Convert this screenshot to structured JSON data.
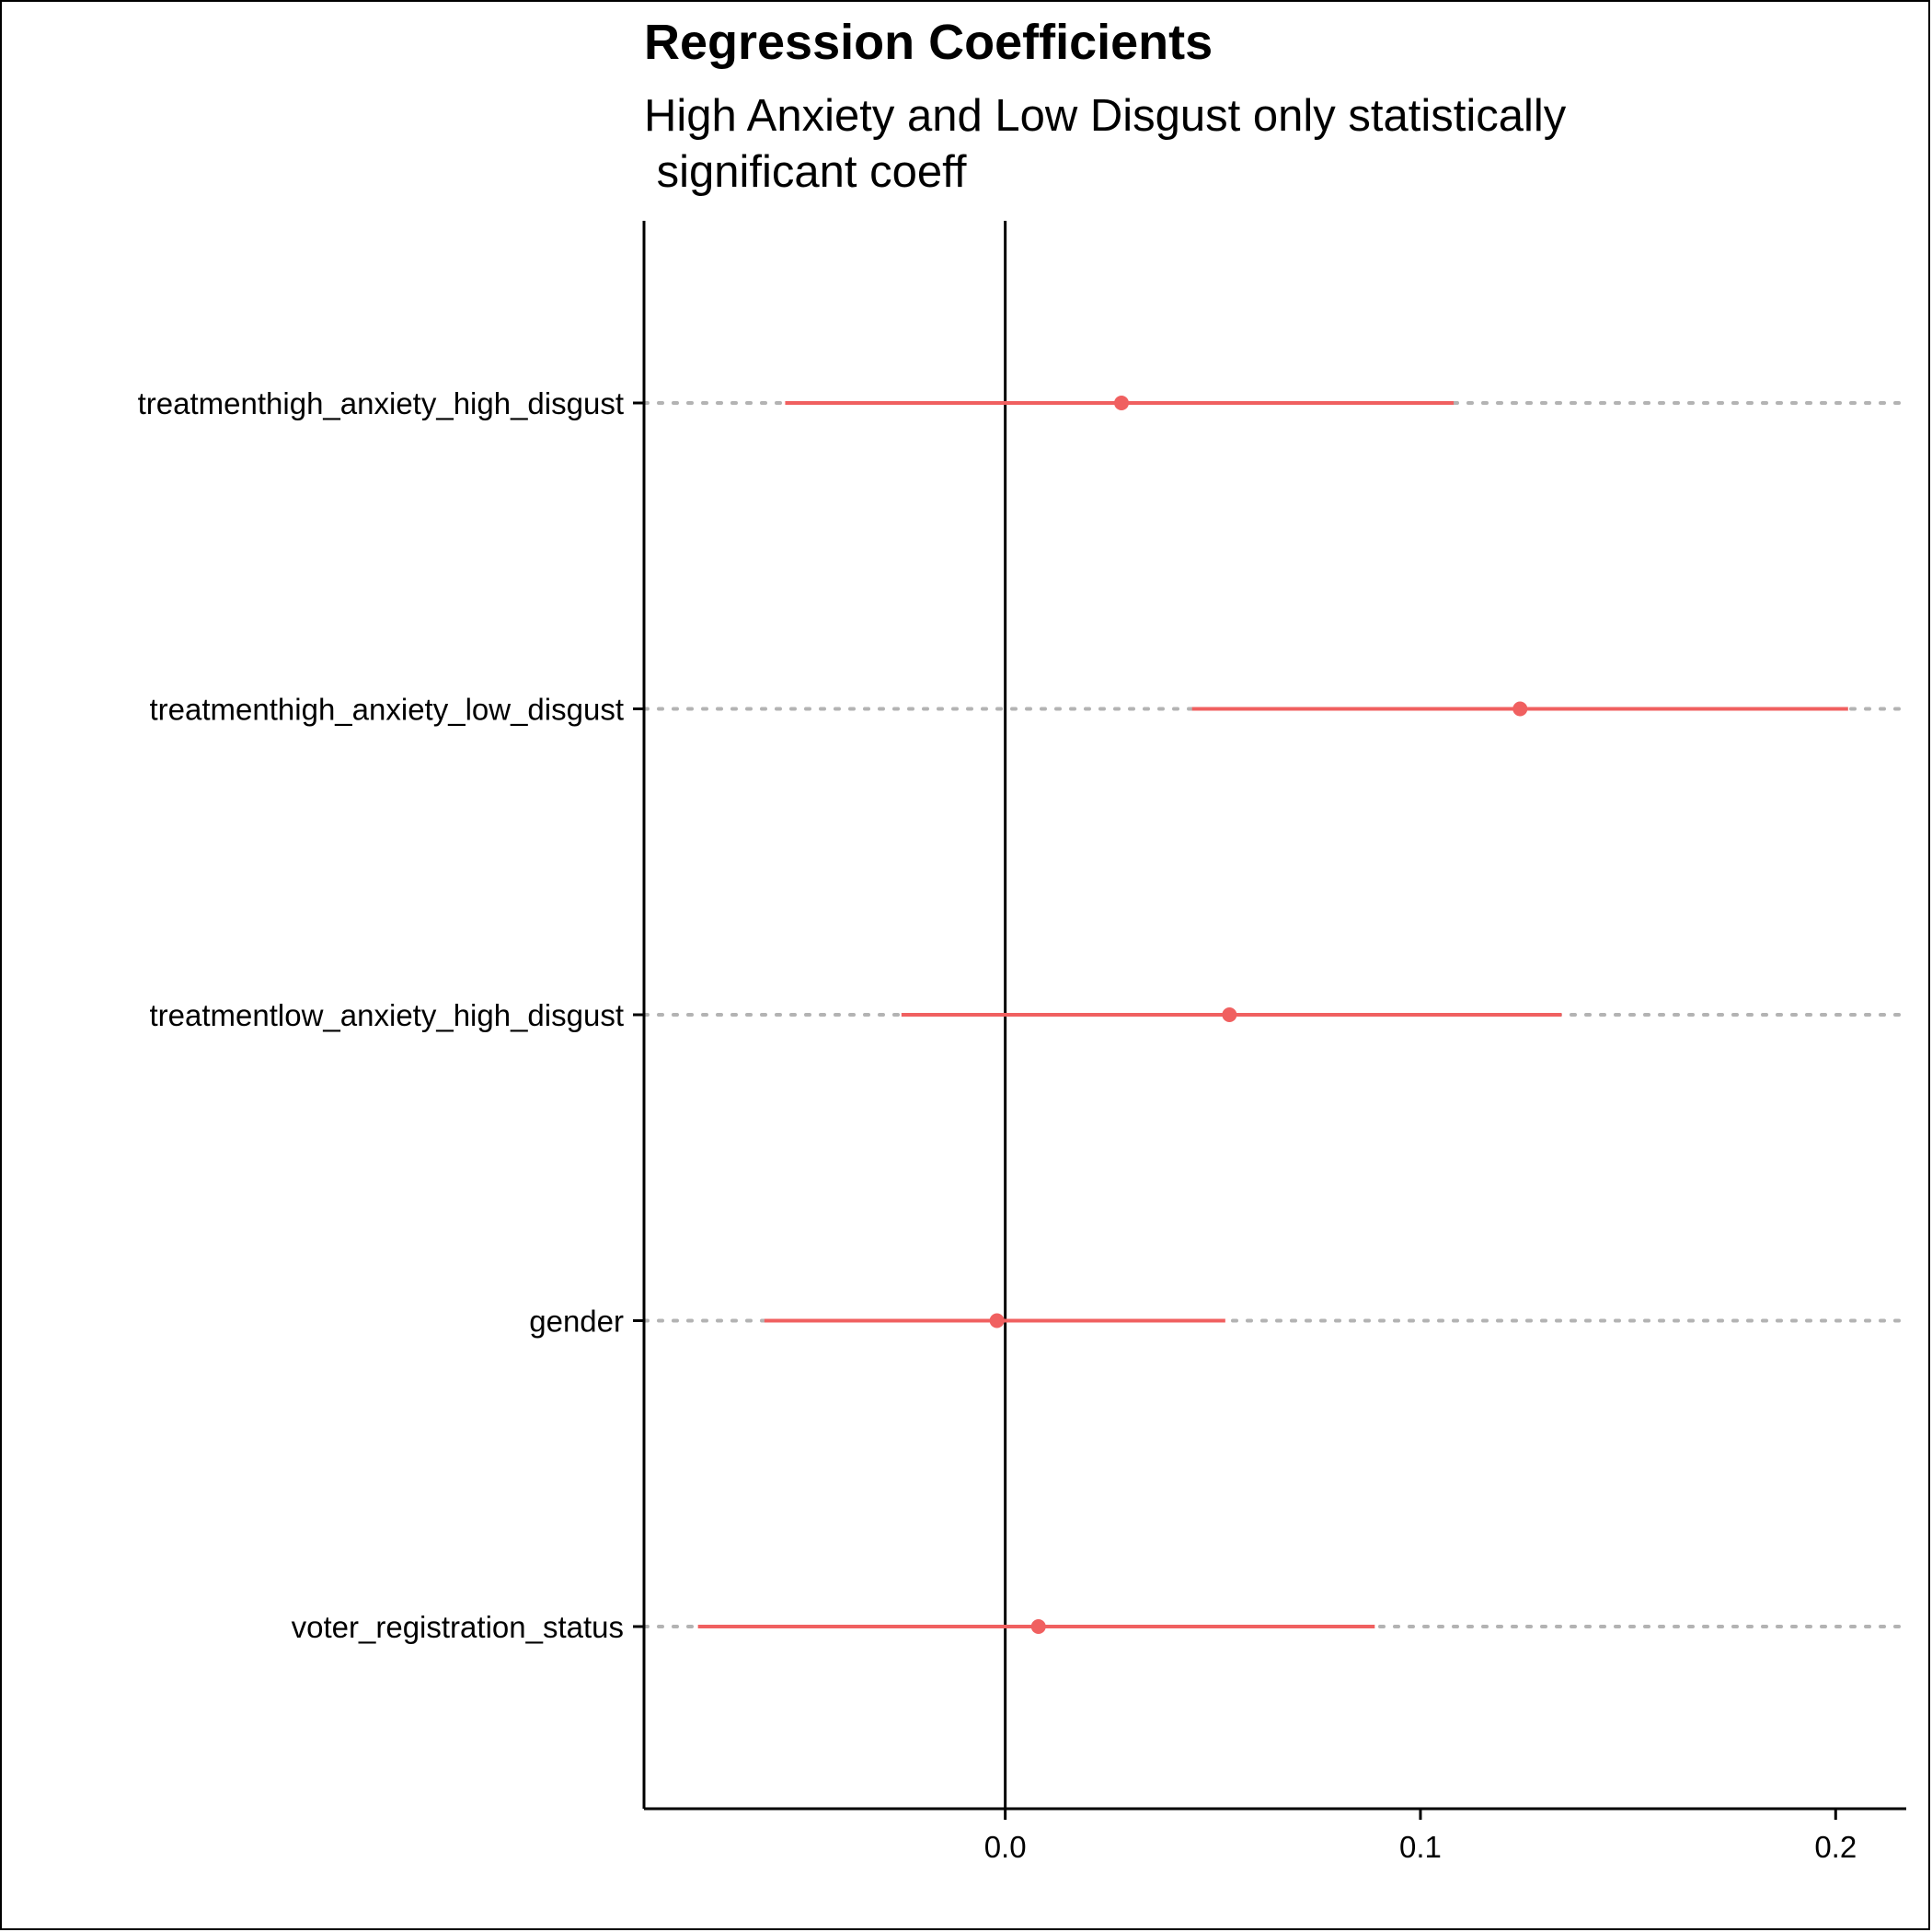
{
  "chart_data": {
    "type": "scatter",
    "title": "Regression Coefficients",
    "subtitle_lines": [
      "High Anxiety and Low Disgust only statistically",
      " significant coeff"
    ],
    "xlabel": "",
    "ylabel": "",
    "xlim": [
      -0.087,
      0.217
    ],
    "x_ticks": [
      0.0,
      0.1,
      0.2
    ],
    "x_tick_labels": [
      "0.0",
      "0.1",
      "0.2"
    ],
    "reference_line_x": 0,
    "grid": "horizontal dotted",
    "legend": "none",
    "colors": {
      "estimate": "#F06060",
      "grid": "#B3B3B3",
      "axis": "#000000"
    },
    "terms": [
      {
        "label": "treatmenthigh_anxiety_high_disgust",
        "estimate": 0.028,
        "ci_low": -0.053,
        "ci_high": 0.108
      },
      {
        "label": "treatmenthigh_anxiety_low_disgust",
        "estimate": 0.124,
        "ci_low": 0.045,
        "ci_high": 0.203
      },
      {
        "label": "treatmentlow_anxiety_high_disgust",
        "estimate": 0.054,
        "ci_low": -0.025,
        "ci_high": 0.134
      },
      {
        "label": "gender",
        "estimate": -0.002,
        "ci_low": -0.058,
        "ci_high": 0.053
      },
      {
        "label": "voter_registration_status",
        "estimate": 0.008,
        "ci_low": -0.074,
        "ci_high": 0.089
      }
    ]
  }
}
